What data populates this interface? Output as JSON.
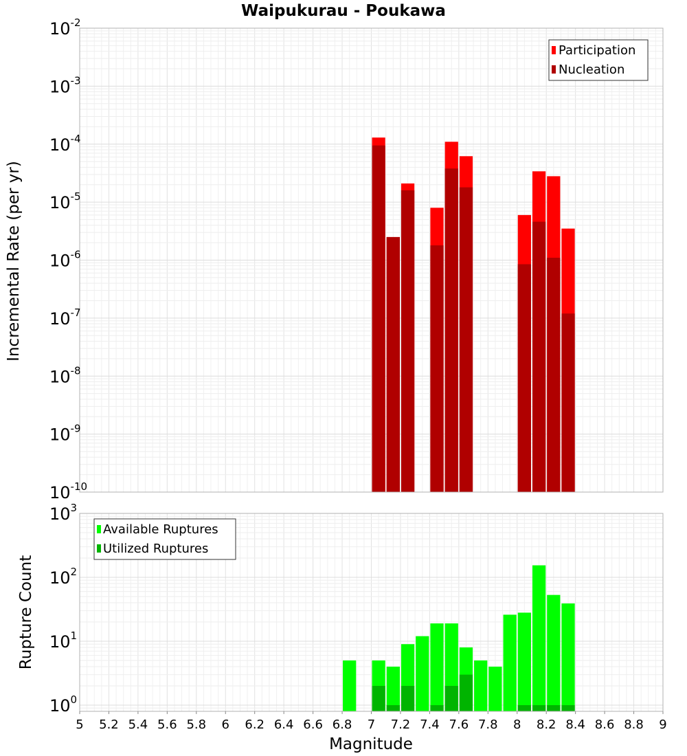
{
  "chart_data": [
    {
      "type": "bar",
      "title": "Waipukurau - Poukawa",
      "xlabel": "Magnitude",
      "ylabel": "Incremental Rate (per yr)",
      "yscale": "log",
      "xlim": [
        5,
        9
      ],
      "ylim": [
        1e-10,
        0.01
      ],
      "ytick_exponents": [
        -10,
        -9,
        -8,
        -7,
        -6,
        -5,
        -4,
        -3,
        -2
      ],
      "ytick_base": "10",
      "bin_width": 0.1,
      "grid": true,
      "legend_position": "top-right",
      "series": [
        {
          "name": "Participation",
          "color": "#ff0000",
          "x": [
            7.05,
            7.15,
            7.25,
            7.45,
            7.55,
            7.65,
            8.05,
            8.15,
            8.25,
            8.35
          ],
          "values": [
            0.00013,
            2.5e-06,
            2.1e-05,
            8e-06,
            0.00011,
            6.2e-05,
            6e-06,
            3.4e-05,
            2.8e-05,
            3.5e-06
          ]
        },
        {
          "name": "Nucleation",
          "color": "#b00000",
          "x": [
            7.05,
            7.15,
            7.25,
            7.45,
            7.55,
            7.65,
            8.05,
            8.15,
            8.25,
            8.35
          ],
          "values": [
            9.5e-05,
            2.5e-06,
            1.6e-05,
            1.8e-06,
            3.8e-05,
            1.8e-05,
            8.5e-07,
            4.6e-06,
            1.1e-06,
            1.2e-07
          ]
        }
      ]
    },
    {
      "type": "bar",
      "xlabel": "Magnitude",
      "ylabel": "Rupture Count",
      "yscale": "log",
      "xlim": [
        5,
        9
      ],
      "ylim": [
        0.8,
        1000
      ],
      "ytick_exponents": [
        0,
        1,
        2,
        3
      ],
      "ytick_base": "10",
      "xticks": [
        "5",
        "5.2",
        "5.4",
        "5.6",
        "5.8",
        "6",
        "6.2",
        "6.4",
        "6.6",
        "6.8",
        "7",
        "7.2",
        "7.4",
        "7.6",
        "7.8",
        "8",
        "8.2",
        "8.4",
        "8.6",
        "8.8",
        "9"
      ],
      "bin_width": 0.1,
      "grid": true,
      "legend_position": "top-left",
      "series": [
        {
          "name": "Available Ruptures",
          "color": "#00ff00",
          "x": [
            6.85,
            7.05,
            7.15,
            7.25,
            7.35,
            7.45,
            7.55,
            7.65,
            7.75,
            7.85,
            7.95,
            8.05,
            8.15,
            8.25,
            8.35
          ],
          "values": [
            5,
            5,
            4,
            9,
            12,
            19,
            19,
            8,
            5,
            4,
            26,
            28,
            154,
            53,
            39
          ]
        },
        {
          "name": "Utilized Ruptures",
          "color": "#00b400",
          "x": [
            7.05,
            7.15,
            7.25,
            7.45,
            7.55,
            7.65,
            8.05,
            8.15,
            8.25,
            8.35
          ],
          "values": [
            2,
            1,
            2,
            1,
            2,
            3,
            1,
            1,
            1,
            1
          ]
        }
      ]
    }
  ]
}
